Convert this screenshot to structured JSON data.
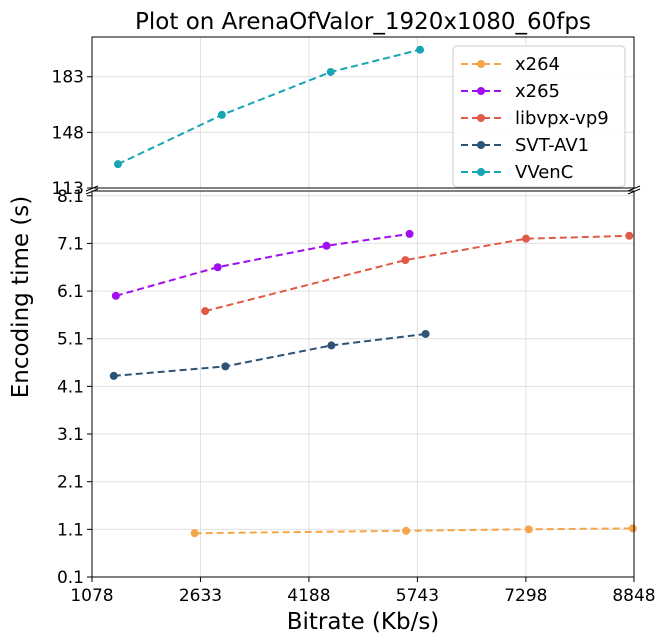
{
  "chart_data": {
    "type": "line",
    "title": "Plot on ArenaOfValor_1920x1080_60fps",
    "xlabel": "Bitrate (Kb/s)",
    "ylabel": "Encoding time (s)",
    "xlim": [
      1078,
      8848
    ],
    "x_ticks": [
      1078,
      2633,
      4188,
      5743,
      7298,
      8848
    ],
    "y_bottom": {
      "ylim": [
        0.1,
        8.2
      ],
      "ticks": [
        0.1,
        1.1,
        2.1,
        3.1,
        4.1,
        5.1,
        6.1,
        7.1,
        8.1
      ]
    },
    "y_top": {
      "ylim": [
        113,
        208
      ],
      "ticks": [
        113,
        148,
        183
      ]
    },
    "grid": true,
    "broken_y_axis": true,
    "legend_position": "top-right",
    "series": [
      {
        "name": "x264",
        "color": "#f5a54a",
        "panel": "bottom",
        "x": [
          2550,
          5580,
          7340,
          8830
        ],
        "y": [
          1.02,
          1.07,
          1.1,
          1.12
        ]
      },
      {
        "name": "x265",
        "color": "#a10ef0",
        "panel": "bottom",
        "x": [
          1420,
          2880,
          4440,
          5630
        ],
        "y": [
          6.0,
          6.6,
          7.05,
          7.3
        ]
      },
      {
        "name": "libvpx-vp9",
        "color": "#e05a45",
        "panel": "bottom",
        "x": [
          2700,
          5570,
          7300,
          8780
        ],
        "y": [
          5.68,
          6.75,
          7.2,
          7.26
        ]
      },
      {
        "name": "SVT-AV1",
        "color": "#2c5274",
        "panel": "bottom",
        "x": [
          1390,
          2990,
          4510,
          5860
        ],
        "y": [
          4.32,
          4.52,
          4.96,
          5.2
        ]
      },
      {
        "name": "VVenC",
        "color": "#17a5b4",
        "panel": "top",
        "x": [
          1450,
          2940,
          4500,
          5780
        ],
        "y": [
          128,
          159,
          186,
          200
        ]
      }
    ]
  }
}
